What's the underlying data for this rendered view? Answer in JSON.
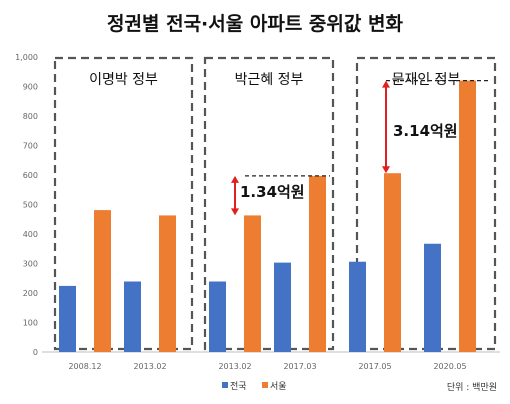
{
  "chart_data": {
    "type": "bar",
    "title": "정권별 전국·서울 아파트 중위값 변화",
    "unit_label": "단위 : 백만원",
    "categories": [
      "2008.12",
      "2013.02",
      "2013.02",
      "2017.03",
      "2017.05",
      "2020.05"
    ],
    "series": [
      {
        "name": "전국",
        "color": "#4472c4",
        "values": [
          224,
          239,
          239,
          303,
          306,
          367
        ]
      },
      {
        "name": "서울",
        "color": "#ed7d31",
        "values": [
          481,
          463,
          463,
          597,
          606,
          920
        ]
      }
    ],
    "ylim": [
      0,
      1000
    ],
    "yticks": [
      "0",
      "100",
      "200",
      "300",
      "400",
      "500",
      "600",
      "700",
      "800",
      "900",
      "1,000"
    ],
    "groups": [
      {
        "label": "이명박 정부",
        "categories": [
          0,
          1
        ]
      },
      {
        "label": "박근혜 정부",
        "categories": [
          2,
          3
        ],
        "annotation": {
          "text": "1.34억원",
          "from": 463,
          "to": 597
        }
      },
      {
        "label": "문재인 정부",
        "categories": [
          4,
          5
        ],
        "annotation": {
          "text": "3.14억원",
          "from": 606,
          "to": 920
        }
      }
    ],
    "grid": false,
    "legend_position": "bottom"
  }
}
